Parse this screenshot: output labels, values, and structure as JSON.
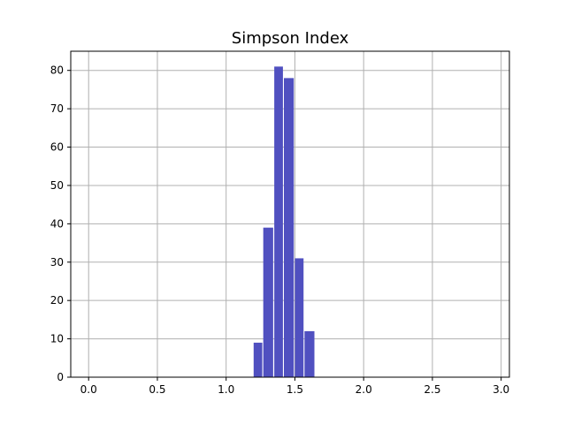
{
  "chart_data": {
    "type": "bar",
    "title": "Simpson Index",
    "xlabel": "",
    "ylabel": "",
    "xlim": [
      -0.13,
      3.06
    ],
    "ylim": [
      0,
      85
    ],
    "grid": true,
    "bar_color": "#5050c0",
    "bins": [
      {
        "x0": 1.2,
        "x1": 1.27,
        "value": 9
      },
      {
        "x0": 1.27,
        "x1": 1.35,
        "value": 39
      },
      {
        "x0": 1.35,
        "x1": 1.42,
        "value": 81
      },
      {
        "x0": 1.42,
        "x1": 1.5,
        "value": 78
      },
      {
        "x0": 1.5,
        "x1": 1.57,
        "value": 31
      },
      {
        "x0": 1.57,
        "x1": 1.65,
        "value": 12
      }
    ],
    "xticks": [
      {
        "value": 0.0,
        "label": "0.0"
      },
      {
        "value": 0.5,
        "label": "0.5"
      },
      {
        "value": 1.0,
        "label": "1.0"
      },
      {
        "value": 1.5,
        "label": "1.5"
      },
      {
        "value": 2.0,
        "label": "2.0"
      },
      {
        "value": 2.5,
        "label": "2.5"
      },
      {
        "value": 3.0,
        "label": "3.0"
      }
    ],
    "yticks": [
      {
        "value": 0,
        "label": "0"
      },
      {
        "value": 10,
        "label": "10"
      },
      {
        "value": 20,
        "label": "20"
      },
      {
        "value": 30,
        "label": "30"
      },
      {
        "value": 40,
        "label": "40"
      },
      {
        "value": 50,
        "label": "50"
      },
      {
        "value": 60,
        "label": "60"
      },
      {
        "value": 70,
        "label": "70"
      },
      {
        "value": 80,
        "label": "80"
      }
    ]
  }
}
